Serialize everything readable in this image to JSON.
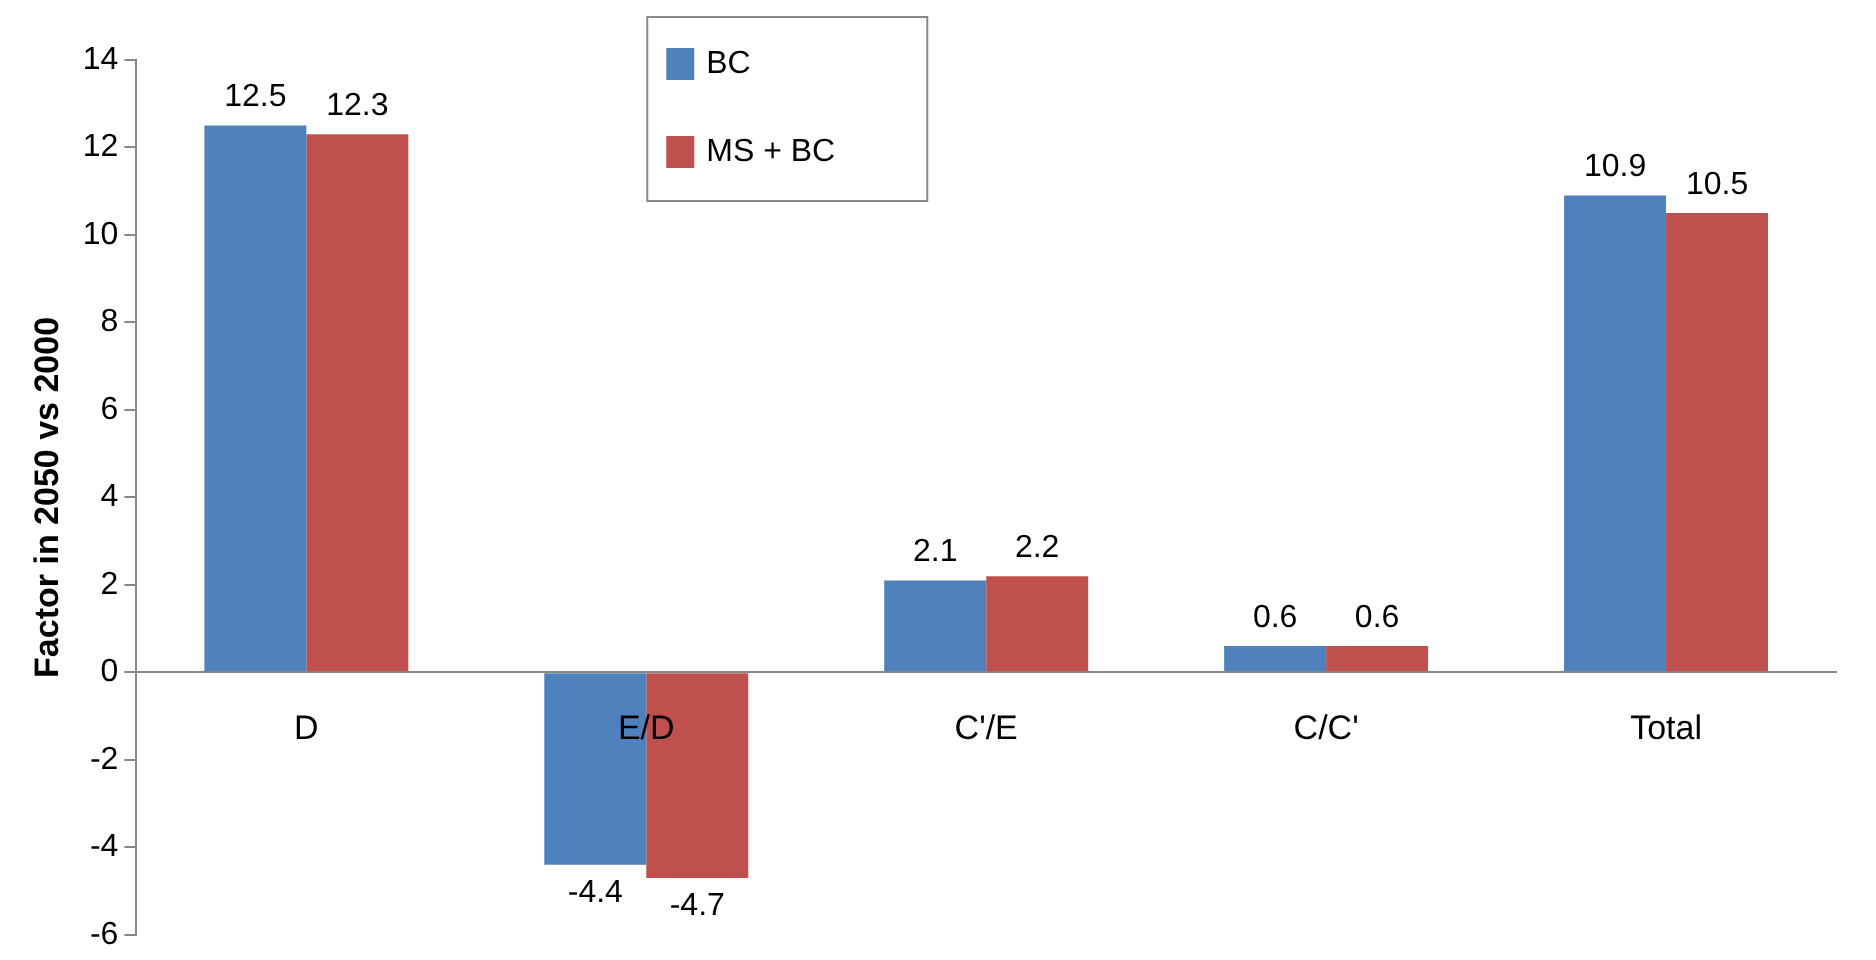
{
  "chart_data": {
    "type": "bar",
    "ylabel": "Factor in 2050 vs 2000",
    "categories": [
      "D",
      "E/D",
      "C'/E",
      "C/C'",
      "Total"
    ],
    "series": [
      {
        "name": "BC",
        "color": "#4f81bd",
        "values": [
          12.5,
          -4.4,
          2.1,
          0.6,
          10.9
        ]
      },
      {
        "name": "MS + BC",
        "color": "#c0504d",
        "values": [
          12.3,
          -4.7,
          2.2,
          0.6,
          10.5
        ]
      }
    ],
    "ylim": [
      -6,
      14
    ],
    "yticks": [
      -6,
      -4,
      -2,
      0,
      2,
      4,
      6,
      8,
      10,
      12,
      14
    ],
    "grid": false,
    "legend": "top",
    "data_labels": true
  }
}
